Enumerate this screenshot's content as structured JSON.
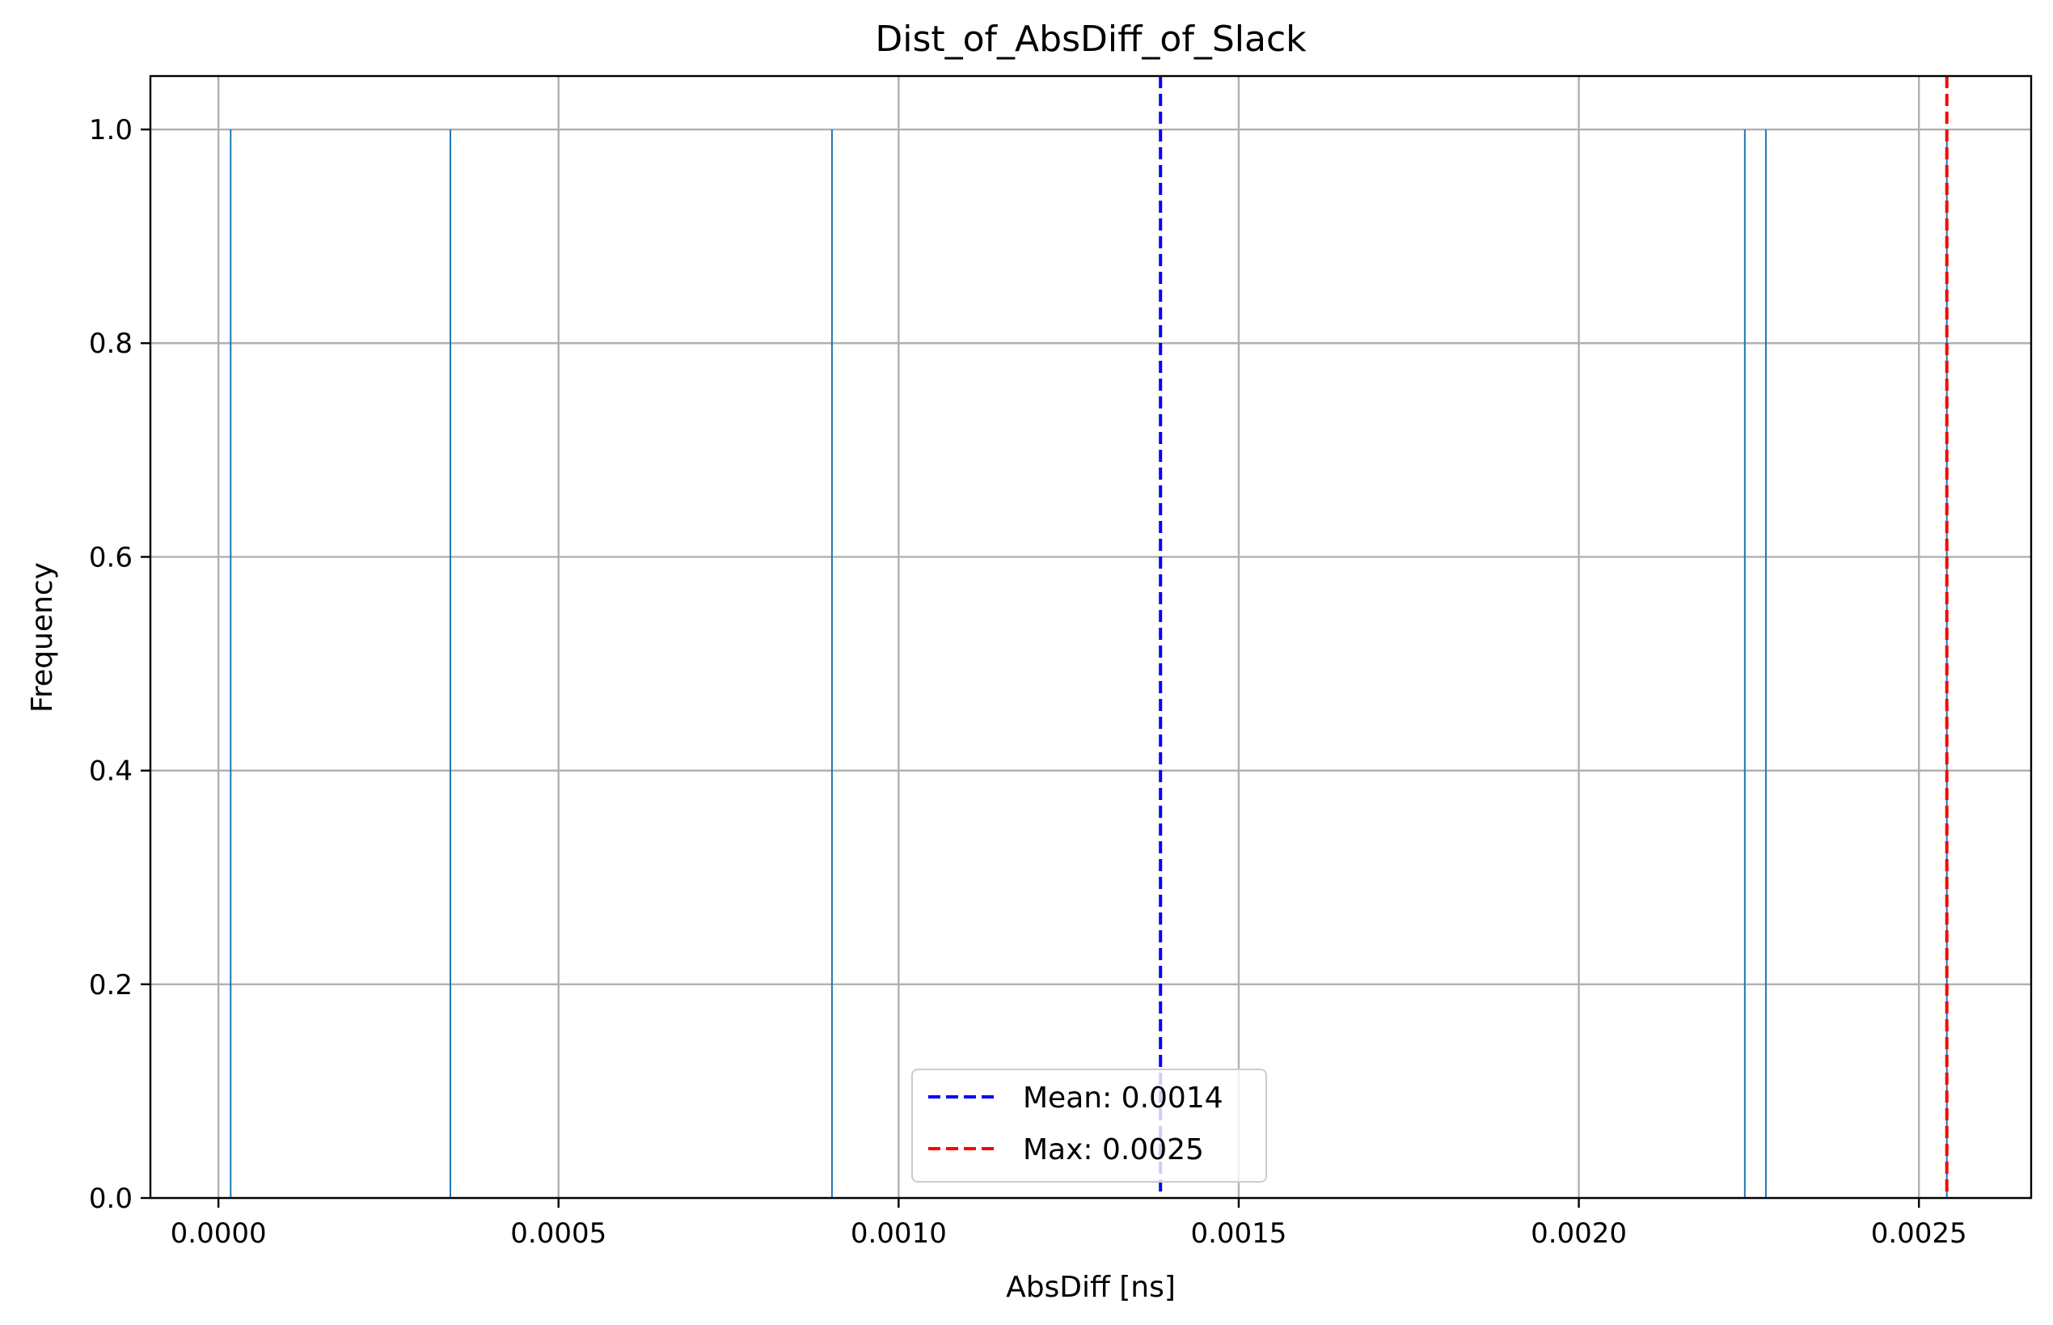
{
  "chart_data": {
    "type": "bar",
    "title": "Dist_of_AbsDiff_of_Slack",
    "xlabel": "AbsDiff [ns]",
    "ylabel": "Frequency",
    "xlim": [
      -0.0001,
      0.002665
    ],
    "ylim": [
      0,
      1.05
    ],
    "grid": true,
    "legend_position": "lower center",
    "xticks": [
      0.0,
      0.0005,
      0.001,
      0.0015,
      0.002,
      0.0025
    ],
    "xtick_labels": [
      "0.0000",
      "0.0005",
      "0.0010",
      "0.0015",
      "0.0020",
      "0.0025"
    ],
    "yticks": [
      0.0,
      0.2,
      0.4,
      0.6,
      0.8,
      1.0
    ],
    "ytick_labels": [
      "0.0",
      "0.2",
      "0.4",
      "0.6",
      "0.8",
      "1.0"
    ],
    "bars": [
      {
        "x": 1.8e-05,
        "value": 1
      },
      {
        "x": 0.000341,
        "value": 1
      },
      {
        "x": 0.000902,
        "value": 1
      },
      {
        "x": 0.002244,
        "value": 1
      },
      {
        "x": 0.002275,
        "value": 1
      },
      {
        "x": 0.002541,
        "value": 1
      }
    ],
    "reference_lines": [
      {
        "label": "Mean: 0.0014",
        "x": 0.001385,
        "color": "#0000ff",
        "style": "dashed"
      },
      {
        "label": "Max: 0.0025",
        "x": 0.002541,
        "color": "#ff0000",
        "style": "dashed"
      }
    ],
    "bar_color": "#1f77b4",
    "grid_color": "#b0b0b0"
  }
}
